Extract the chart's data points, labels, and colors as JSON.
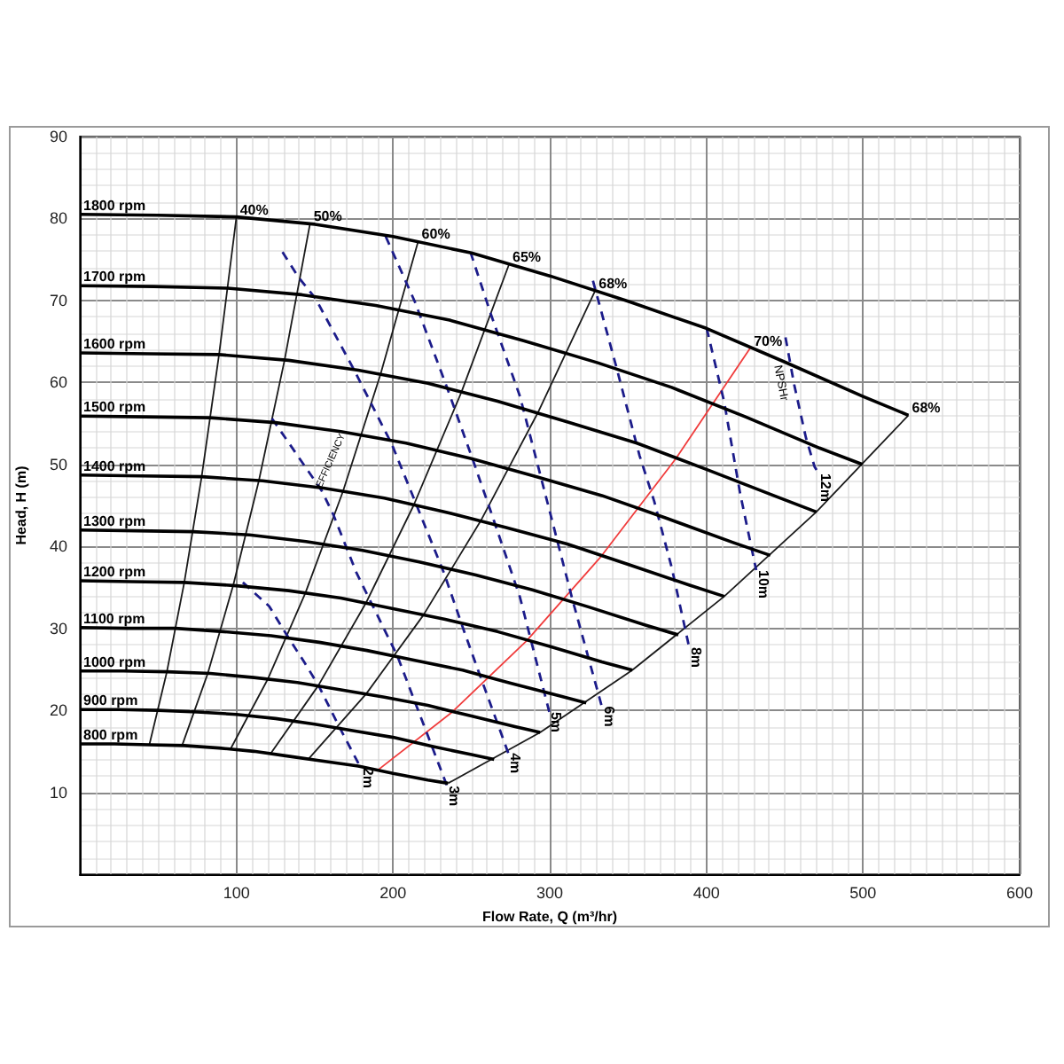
{
  "chart_data": {
    "type": "line",
    "xlabel": "Flow Rate, Q (m³/hr)",
    "ylabel": "Head, H (m)",
    "xlim": [
      0,
      600
    ],
    "ylim": [
      0,
      90
    ],
    "xticks": [
      {
        "value": 0,
        "label": null
      },
      100,
      200,
      300,
      400,
      500,
      600
    ],
    "yticks": [
      {
        "value": 0,
        "label": null
      },
      10,
      20,
      30,
      40,
      50,
      60,
      70,
      80,
      90
    ],
    "grid": true,
    "marker": "none",
    "annotations": [
      "EFFICIENCY",
      "NPSHr"
    ],
    "series": [
      {
        "name": "1800 rpm",
        "color": "#000000",
        "x": [
          0,
          50,
          100,
          150,
          200,
          250,
          300,
          350,
          400,
          450,
          500,
          529
        ],
        "values": [
          80.5,
          80.4,
          80.2,
          79.3,
          77.8,
          75.8,
          73.0,
          69.9,
          66.6,
          62.5,
          58.3,
          56.0
        ]
      },
      {
        "name": "1700 rpm",
        "color": "#000000",
        "x": [
          0,
          47.2,
          94.4,
          141.7,
          188.9,
          236.1,
          283.3,
          330.6,
          377.8,
          425,
          472.2,
          499.6
        ],
        "values": [
          71.8,
          71.7,
          71.5,
          70.7,
          69.4,
          67.6,
          65.1,
          62.4,
          59.4,
          55.8,
          52.0,
          50.0
        ]
      },
      {
        "name": "1600 rpm",
        "color": "#000000",
        "x": [
          0,
          44.4,
          88.9,
          133.3,
          177.8,
          222.2,
          266.7,
          311.1,
          355.6,
          400,
          444.4,
          470.2
        ],
        "values": [
          63.6,
          63.5,
          63.4,
          62.7,
          61.5,
          59.9,
          57.7,
          55.2,
          52.6,
          49.4,
          46.1,
          44.2
        ]
      },
      {
        "name": "1500 rpm",
        "color": "#000000",
        "x": [
          0,
          41.7,
          83.3,
          125,
          166.7,
          208.3,
          250,
          291.7,
          333.3,
          375,
          416.7,
          440.8
        ],
        "values": [
          55.9,
          55.8,
          55.7,
          55.1,
          54.0,
          52.6,
          50.7,
          48.5,
          46.2,
          43.4,
          40.5,
          38.9
        ]
      },
      {
        "name": "1400 rpm",
        "color": "#000000",
        "x": [
          0,
          38.9,
          77.8,
          116.7,
          155.6,
          194.4,
          233.3,
          272.2,
          311.1,
          350,
          388.9,
          411.4
        ],
        "values": [
          48.7,
          48.6,
          48.5,
          48.0,
          47.1,
          45.9,
          44.2,
          42.3,
          40.3,
          37.8,
          35.3,
          33.9
        ]
      },
      {
        "name": "1300 rpm",
        "color": "#000000",
        "x": [
          0,
          36.1,
          72.2,
          108.3,
          144.4,
          180.6,
          216.7,
          252.8,
          288.9,
          325,
          361.1,
          382.1
        ],
        "values": [
          42.0,
          41.9,
          41.8,
          41.4,
          40.6,
          39.5,
          38.1,
          36.5,
          34.7,
          32.6,
          30.4,
          29.2
        ]
      },
      {
        "name": "1200 rpm",
        "color": "#000000",
        "x": [
          0,
          33.3,
          66.7,
          100,
          133.3,
          166.7,
          200,
          233.3,
          266.7,
          300,
          333.3,
          352.7
        ],
        "values": [
          35.8,
          35.7,
          35.6,
          35.2,
          34.6,
          33.7,
          32.4,
          31.1,
          29.6,
          27.8,
          25.9,
          24.9
        ]
      },
      {
        "name": "1100 rpm",
        "color": "#000000",
        "x": [
          0,
          30.6,
          61.1,
          91.7,
          122.2,
          152.8,
          183.3,
          213.9,
          244.4,
          275,
          305.6,
          323.3
        ],
        "values": [
          30.1,
          30.0,
          30.0,
          29.6,
          29.1,
          28.3,
          27.3,
          26.1,
          24.9,
          23.3,
          21.8,
          20.9
        ]
      },
      {
        "name": "1000 rpm",
        "color": "#000000",
        "x": [
          0,
          27.8,
          55.6,
          83.3,
          111.1,
          138.9,
          166.7,
          194.4,
          222.2,
          250,
          277.8,
          293.9
        ],
        "values": [
          24.8,
          24.8,
          24.7,
          24.5,
          24.0,
          23.4,
          22.5,
          21.6,
          20.6,
          19.3,
          18.0,
          17.3
        ]
      },
      {
        "name": "900 rpm",
        "color": "#000000",
        "x": [
          0,
          25,
          50,
          75,
          100,
          125,
          150,
          175,
          200,
          225,
          250,
          264.5
        ],
        "values": [
          20.1,
          20.1,
          20.0,
          19.8,
          19.5,
          19.0,
          18.3,
          17.5,
          16.7,
          15.6,
          14.6,
          14.0
        ]
      },
      {
        "name": "800 rpm",
        "color": "#000000",
        "x": [
          0,
          22.2,
          44.4,
          66.7,
          88.9,
          111.1,
          133.3,
          155.6,
          177.8,
          200,
          222.2,
          235.1
        ],
        "values": [
          15.9,
          15.9,
          15.8,
          15.7,
          15.4,
          15.0,
          14.4,
          13.8,
          13.2,
          12.3,
          11.5,
          11.1
        ]
      },
      {
        "name": "40%",
        "color": "#1a1a1a",
        "x": [
          44.4,
          55.6,
          66.7,
          77.8,
          88.9,
          100
        ],
        "values": [
          15.8,
          24.7,
          35.6,
          48.5,
          63.4,
          80.2
        ]
      },
      {
        "name": "50%",
        "color": "#1a1a1a",
        "x": [
          65.3,
          81.7,
          98,
          114.3,
          130.7,
          147
        ],
        "values": [
          15.7,
          24.5,
          35.3,
          48.0,
          62.7,
          79.4
        ]
      },
      {
        "name": "60%",
        "color": "#1a1a1a",
        "x": [
          96,
          120,
          144,
          168,
          192,
          216
        ],
        "values": [
          15.2,
          23.8,
          34.3,
          46.7,
          61.0,
          77.2
        ]
      },
      {
        "name": "65%",
        "color": "#1a1a1a",
        "x": [
          121.8,
          152.2,
          182.7,
          213.1,
          243.6,
          274
        ],
        "values": [
          14.7,
          23.0,
          33.1,
          45.0,
          58.8,
          74.4
        ]
      },
      {
        "name": "68%",
        "color": "#1a1a1a",
        "x": [
          146.2,
          182.8,
          219.3,
          255.9,
          292.4,
          329
        ],
        "values": [
          14.1,
          22.0,
          31.6,
          43.1,
          56.3,
          71.2
        ]
      },
      {
        "name": "70%",
        "color": "#f03c3c",
        "x": [
          190.2,
          237.8,
          285.3,
          332.9,
          380.5,
          428
        ],
        "values": [
          12.7,
          19.8,
          28.5,
          38.8,
          50.7,
          64.2
        ]
      },
      {
        "name": "68%",
        "color": "#1a1a1a",
        "x": [
          235.1,
          293.9,
          352.7,
          411.4,
          470.2,
          529
        ],
        "values": [
          11.1,
          17.3,
          24.9,
          33.9,
          44.2,
          56.0
        ]
      },
      {
        "name": "2m",
        "color": "#1c1c8a",
        "line_style": "dashed",
        "x": [
          104.1,
          120.9,
          132.1,
          143.2,
          152.5,
          165.6,
          179.3
        ],
        "values": [
          35.6,
          32.7,
          29.2,
          25.9,
          23.0,
          18.0,
          13.0
        ]
      },
      {
        "name": "3m",
        "color": "#1c1c8a",
        "line_style": "dashed",
        "x": [
          122.7,
          154.4,
          161.8,
          176.8,
          189.7,
          202.8,
          234.4
        ],
        "values": [
          55.6,
          46.8,
          43.9,
          36.7,
          31.7,
          26.6,
          10.8
        ]
      },
      {
        "name": "4m",
        "color": "#1c1c8a",
        "line_style": "dashed",
        "x": [
          129.4,
          139.4,
          150.6,
          174.9,
          199.1,
          214,
          232.6,
          245.6,
          255,
          266.1,
          273.5
        ],
        "values": [
          75.9,
          72.9,
          70.2,
          61.6,
          52.5,
          45.5,
          36.7,
          29.5,
          24.5,
          18.7,
          14.8
        ]
      },
      {
        "name": "5m",
        "color": "#1c1c8a",
        "line_style": "dashed",
        "x": [
          195.3,
          214,
          234.4,
          251.2,
          262.3,
          281,
          299.7
        ],
        "values": [
          77.8,
          69.8,
          59.4,
          50.4,
          44.3,
          33.8,
          19.8
        ]
      },
      {
        "name": "6m",
        "color": "#1c1c8a",
        "line_style": "dashed",
        "x": [
          249.4,
          262.3,
          281,
          299.7,
          314.5,
          333.2
        ],
        "values": [
          75.9,
          68.4,
          58.3,
          44.5,
          33.5,
          20.5
        ]
      },
      {
        "name": "8m",
        "color": "#1c1c8a",
        "line_style": "dashed",
        "x": [
          327.6,
          342.5,
          357.3,
          366.7,
          377.9,
          389
        ],
        "values": [
          72.4,
          61.9,
          51.1,
          45.5,
          37.4,
          27.7
        ]
      },
      {
        "name": "10m",
        "color": "#1c1c8a",
        "line_style": "dashed",
        "x": [
          400.2,
          411.4,
          421.5,
          431.8
        ],
        "values": [
          66.6,
          57.6,
          46.5,
          37.1
        ]
      },
      {
        "name": "12m",
        "color": "#1c1c8a",
        "line_style": "dashed",
        "x": [
          450.5,
          456.1,
          463.5,
          469.1,
          471.7
        ],
        "values": [
          65.5,
          59.7,
          53.3,
          49.7,
          48.9
        ]
      }
    ]
  }
}
